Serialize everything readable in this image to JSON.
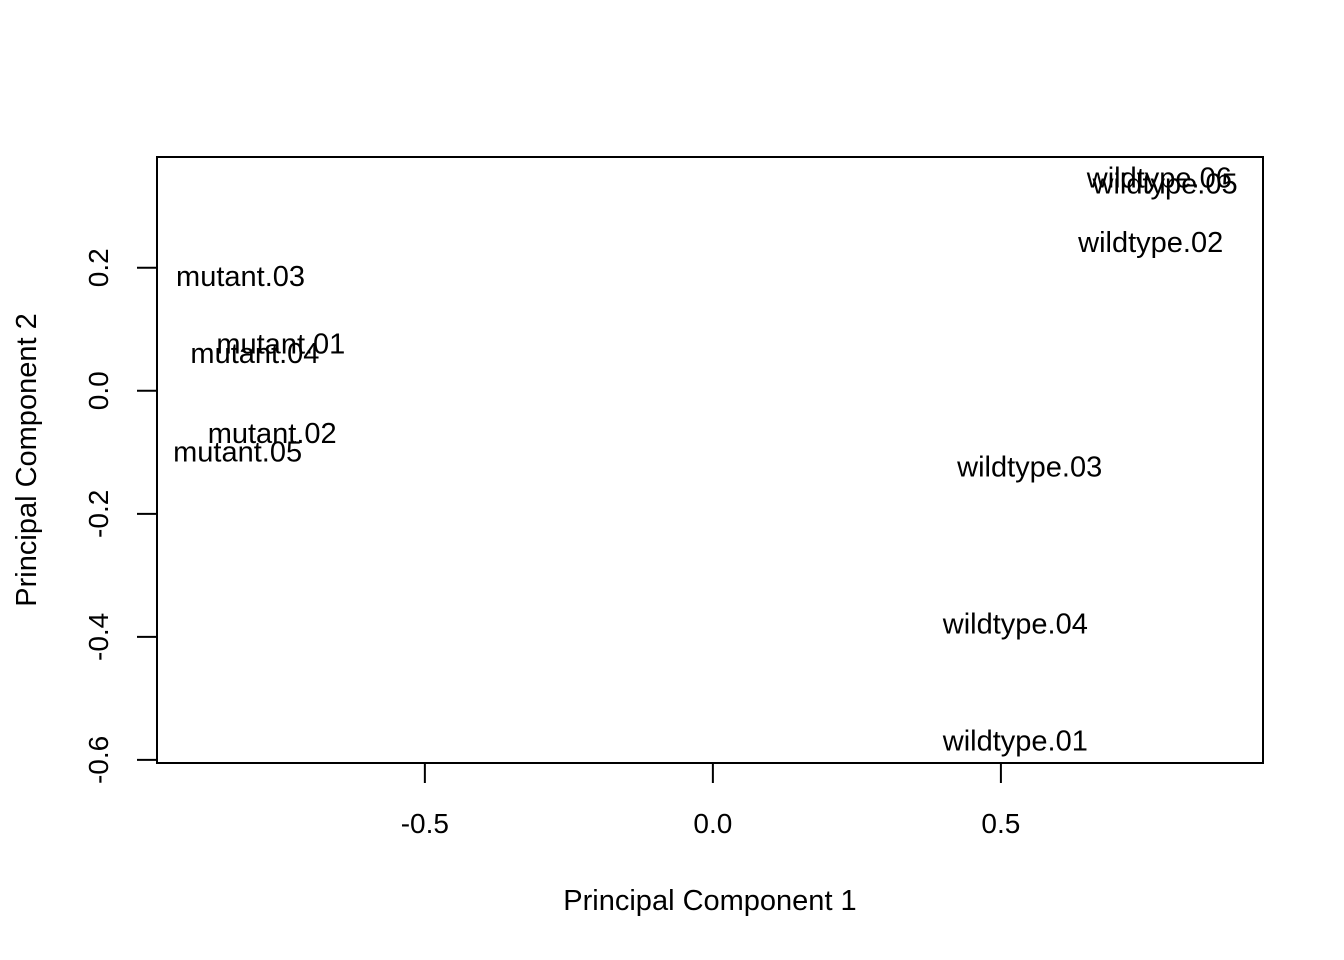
{
  "chart_data": {
    "type": "scatter",
    "title": "",
    "xlabel": "Principal Component 1",
    "ylabel": "Principal Component 2",
    "xlim": [
      -0.965,
      0.955
    ],
    "ylim": [
      -0.605,
      0.38
    ],
    "xticks": [
      -0.5,
      0.0,
      0.5
    ],
    "xtick_labels": [
      "-0.5",
      "0.0",
      "0.5"
    ],
    "yticks": [
      -0.6,
      -0.4,
      -0.2,
      0.0,
      0.2
    ],
    "ytick_labels": [
      "-0.6",
      "-0.4",
      "-0.2",
      "0.0",
      "0.2"
    ],
    "grid": false,
    "points": [
      {
        "label": "mutant.03",
        "x": -0.82,
        "y": 0.185
      },
      {
        "label": "mutant.01",
        "x": -0.75,
        "y": 0.075
      },
      {
        "label": "mutant.04",
        "x": -0.795,
        "y": 0.06
      },
      {
        "label": "mutant.02",
        "x": -0.765,
        "y": -0.07
      },
      {
        "label": "mutant.05",
        "x": -0.825,
        "y": -0.1
      },
      {
        "label": "wildtype.06",
        "x": 0.775,
        "y": 0.345
      },
      {
        "label": "wildtype.05",
        "x": 0.785,
        "y": 0.335
      },
      {
        "label": "wildtype.02",
        "x": 0.76,
        "y": 0.24
      },
      {
        "label": "wildtype.03",
        "x": 0.55,
        "y": -0.125
      },
      {
        "label": "wildtype.04",
        "x": 0.525,
        "y": -0.38
      },
      {
        "label": "wildtype.01",
        "x": 0.525,
        "y": -0.57
      }
    ]
  }
}
